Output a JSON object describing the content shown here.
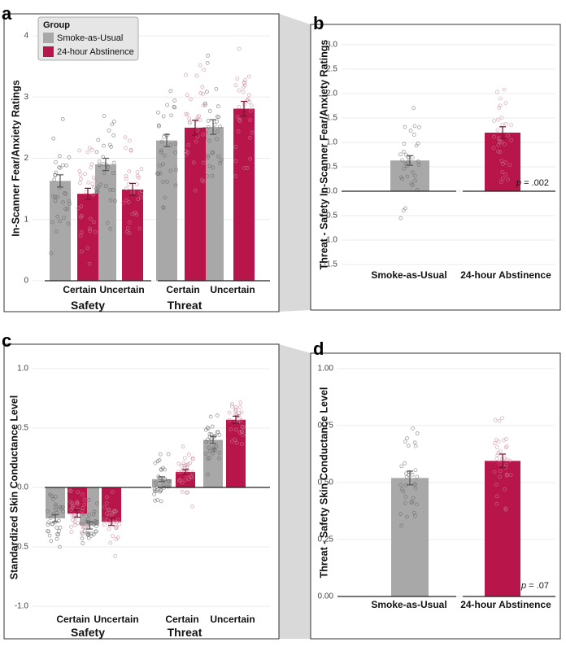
{
  "colors": {
    "smoke": "#a8a8a8",
    "abstinence": "#b8164a",
    "connector": "#d9d9d9",
    "grid": "#ebebeb"
  },
  "legend": {
    "title": "Group",
    "items": [
      "Smoke-as-Usual",
      "24-hour Abstinence"
    ]
  },
  "chart_data": [
    {
      "id": "a",
      "panel_label": "a",
      "type": "bar",
      "ylabel": "In-Scanner Fear/Anxiety Ratings",
      "ylim": [
        0,
        4
      ],
      "yticks": [
        0,
        1,
        2,
        3,
        4
      ],
      "groups": [
        {
          "name": "Safety",
          "categories": [
            "Certain",
            "Uncertain"
          ]
        },
        {
          "name": "Threat",
          "categories": [
            "Certain",
            "Uncertain"
          ]
        }
      ],
      "series": [
        {
          "name": "Smoke-as-Usual",
          "values": [
            1.63,
            1.9,
            2.29,
            2.51
          ],
          "errors": [
            0.1,
            0.1,
            0.1,
            0.12
          ]
        },
        {
          "name": "24-hour Abstinence",
          "values": [
            1.42,
            1.49,
            2.5,
            2.81
          ],
          "errors": [
            0.09,
            0.1,
            0.12,
            0.12
          ]
        }
      ]
    },
    {
      "id": "b",
      "panel_label": "b",
      "type": "bar",
      "ylabel": "Threat - Safety In-Scanner Fear/Anxiety Ratings",
      "ylim": [
        -1.6,
        3.2
      ],
      "yticks": [
        -1.5,
        -1.0,
        -0.5,
        0.0,
        0.5,
        1.0,
        1.5,
        2.0,
        2.5,
        3.0
      ],
      "categories": [
        "Smoke-as-Usual",
        "24-hour Abstinence"
      ],
      "values": [
        0.63,
        1.2
      ],
      "errors": [
        0.1,
        0.12
      ],
      "annotation": {
        "p_label": "p",
        "p_value": " = .002"
      }
    },
    {
      "id": "c",
      "panel_label": "c",
      "type": "bar",
      "ylabel": "Standardized Skin Conductance Level",
      "ylim": [
        -1.0,
        1.0
      ],
      "yticks": [
        -1.0,
        -0.5,
        0.0,
        0.5,
        1.0
      ],
      "groups": [
        {
          "name": "Safety",
          "categories": [
            "Certain",
            "Uncertain"
          ]
        },
        {
          "name": "Threat",
          "categories": [
            "Certain",
            "Uncertain"
          ]
        }
      ],
      "series": [
        {
          "name": "Smoke-as-Usual",
          "values": [
            -0.26,
            -0.32,
            0.07,
            0.4
          ],
          "errors": [
            0.03,
            0.03,
            0.02,
            0.03
          ]
        },
        {
          "name": "24-hour Abstinence",
          "values": [
            -0.22,
            -0.29,
            0.13,
            0.57
          ],
          "errors": [
            0.03,
            0.03,
            0.02,
            0.03
          ]
        }
      ]
    },
    {
      "id": "d",
      "panel_label": "d",
      "type": "bar",
      "ylabel": "Threat - Safety Skin Conductance Level",
      "ylim": [
        0,
        1.0
      ],
      "yticks": [
        0.0,
        0.25,
        0.5,
        0.75,
        1.0
      ],
      "categories": [
        "Smoke-as-Usual",
        "24-hour Abstinence"
      ],
      "values": [
        0.52,
        0.595
      ],
      "errors": [
        0.03,
        0.03
      ],
      "annotation": {
        "p_label": "p",
        "p_value": " = .07"
      }
    }
  ]
}
